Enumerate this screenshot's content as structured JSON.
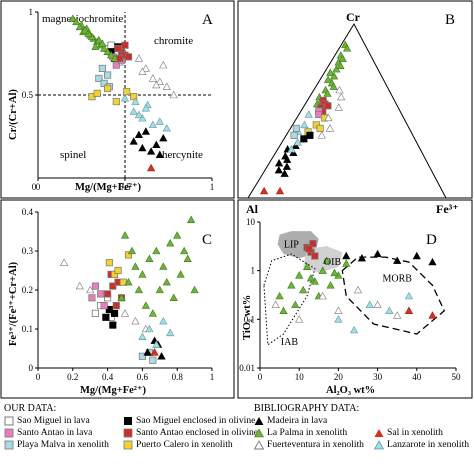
{
  "colors": {
    "sao_miguel_lava": "#ffffff",
    "sao_miguel_olivine": "#000000",
    "santo_antao_lava": "#e77fbf",
    "santo_antao_olivine": "#c9302c",
    "playa_malva": "#a9dbe2",
    "puerto_calero": "#f2d230",
    "madeira": "#000000",
    "la_palma": "#6fb33a",
    "sal": "#d9301e",
    "fuerteventura": "#ffffff",
    "lanzarote": "#a9dbe2"
  },
  "chart_data": [
    {
      "type": "scatter",
      "panel_label": "A",
      "xlabel": "Mg/(Mg+Fe²⁺)",
      "ylabel": "Cr/(Cr+Al)",
      "xlim": [
        0,
        1
      ],
      "ylim": [
        0,
        1
      ],
      "x_ticks": [
        "0",
        "0.5",
        "1"
      ],
      "y_ticks": [
        "0.5",
        "1"
      ],
      "region_labels": [
        "magnesiochromite",
        "chromite",
        "spinel",
        "hercynite"
      ],
      "divider_lines": {
        "x": 0.5,
        "y": 0.5
      },
      "series": [
        {
          "name": "Sao Miguel in lava",
          "marker": "square-open",
          "x": [
            0.4,
            0.44,
            0.47,
            0.42,
            0.45
          ],
          "y": [
            0.78,
            0.74,
            0.7,
            0.8,
            0.76
          ]
        },
        {
          "name": "Sao Miguel enclosed in olivine",
          "marker": "square",
          "x": [
            0.42,
            0.46,
            0.44,
            0.48
          ],
          "y": [
            0.76,
            0.79,
            0.72,
            0.74
          ]
        },
        {
          "name": "Santo Antao in lava",
          "marker": "square",
          "x": [
            0.45,
            0.48,
            0.43
          ],
          "y": [
            0.68,
            0.71,
            0.73
          ]
        },
        {
          "name": "Santo Antao enclosed in olivine",
          "marker": "square",
          "x": [
            0.48,
            0.5,
            0.46,
            0.52,
            0.47,
            0.5
          ],
          "y": [
            0.76,
            0.74,
            0.78,
            0.73,
            0.72,
            0.8
          ]
        },
        {
          "name": "Playa Malva in xenolith",
          "marker": "square",
          "x": [
            0.35,
            0.38,
            0.41,
            0.4,
            0.37
          ],
          "y": [
            0.6,
            0.57,
            0.55,
            0.62,
            0.66
          ]
        },
        {
          "name": "Puerto Calero in xenolith",
          "marker": "square",
          "x": [
            0.31,
            0.34,
            0.45,
            0.51,
            0.55,
            0.4
          ],
          "y": [
            0.49,
            0.51,
            0.46,
            0.52,
            0.49,
            0.54
          ]
        },
        {
          "name": "Madeira in lava",
          "marker": "triangle",
          "x": [
            0.55,
            0.6,
            0.65,
            0.68,
            0.7,
            0.58,
            0.62,
            0.72
          ],
          "y": [
            0.22,
            0.18,
            0.16,
            0.2,
            0.14,
            0.26,
            0.28,
            0.24
          ]
        },
        {
          "name": "La Palma in xenolith",
          "marker": "triangle",
          "x": [
            0.2,
            0.22,
            0.25,
            0.28,
            0.3,
            0.32,
            0.34,
            0.36,
            0.38,
            0.4,
            0.26,
            0.31,
            0.35,
            0.29,
            0.33,
            0.24,
            0.37,
            0.27,
            0.42,
            0.44
          ],
          "y": [
            0.96,
            0.94,
            0.92,
            0.9,
            0.86,
            0.84,
            0.82,
            0.8,
            0.78,
            0.76,
            0.88,
            0.85,
            0.83,
            0.87,
            0.79,
            0.91,
            0.81,
            0.89,
            0.74,
            0.72
          ]
        },
        {
          "name": "Sal in xenolith",
          "marker": "triangle",
          "x": [
            0.65
          ],
          "y": [
            0.06
          ]
        },
        {
          "name": "Fuerteventura in xenolith",
          "marker": "triangle-open",
          "x": [
            0.58,
            0.62,
            0.66,
            0.7,
            0.74,
            0.78,
            0.6,
            0.68,
            0.72
          ],
          "y": [
            0.72,
            0.66,
            0.6,
            0.58,
            0.55,
            0.5,
            0.64,
            0.56,
            0.68
          ]
        },
        {
          "name": "Lanzarote in xenolith",
          "marker": "triangle-open",
          "x": [
            0.5,
            0.55,
            0.6,
            0.63,
            0.66,
            0.7,
            0.74,
            0.58,
            0.62,
            0.56
          ],
          "y": [
            0.48,
            0.4,
            0.36,
            0.44,
            0.32,
            0.34,
            0.3,
            0.38,
            0.42,
            0.46
          ]
        }
      ]
    },
    {
      "type": "scatter",
      "panel_label": "B",
      "subtype": "ternary",
      "vertex_labels": {
        "top": "Cr",
        "left": "Al",
        "right": "Fe³⁺"
      }
    },
    {
      "type": "scatter",
      "panel_label": "C",
      "xlabel": "Mg/(Mg+Fe²⁺)",
      "ylabel": "Fe³⁺/(Fe³⁺+Cr+Al)",
      "xlim": [
        0,
        1
      ],
      "ylim": [
        0,
        0.4
      ],
      "x_ticks": [
        "0",
        "0.2",
        "0.4",
        "0.6",
        "0.8",
        "1"
      ],
      "y_ticks": [
        "0",
        "0.1",
        "0.2",
        "0.3",
        "0.4"
      ],
      "series": [
        {
          "name": "Sao Miguel in lava",
          "x": [
            0.33,
            0.36,
            0.4,
            0.42
          ],
          "y": [
            0.14,
            0.16,
            0.18,
            0.13
          ]
        },
        {
          "name": "Sao Miguel enclosed in olivine",
          "x": [
            0.39,
            0.41,
            0.43,
            0.44
          ],
          "y": [
            0.13,
            0.15,
            0.11,
            0.14
          ]
        },
        {
          "name": "Santo Antao in lava",
          "x": [
            0.31,
            0.33,
            0.36,
            0.38
          ],
          "y": [
            0.18,
            0.21,
            0.19,
            0.16
          ]
        },
        {
          "name": "Santo Antao enclosed in olivine",
          "x": [
            0.4,
            0.43,
            0.46,
            0.48,
            0.42,
            0.45
          ],
          "y": [
            0.19,
            0.21,
            0.22,
            0.18,
            0.24,
            0.16
          ]
        },
        {
          "name": "Playa Malva in xenolith",
          "x": [
            0.6,
            0.64,
            0.66
          ],
          "y": [
            0.03,
            0.04,
            0.02
          ]
        },
        {
          "name": "Puerto Calero in xenolith",
          "x": [
            0.41,
            0.44,
            0.49,
            0.52,
            0.46
          ],
          "y": [
            0.27,
            0.24,
            0.22,
            0.29,
            0.25
          ]
        },
        {
          "name": "Madeira in lava",
          "x": [
            0.63,
            0.67,
            0.71,
            0.69
          ],
          "y": [
            0.04,
            0.07,
            0.03,
            0.06
          ]
        },
        {
          "name": "La Palma in xenolith",
          "x": [
            0.48,
            0.52,
            0.56,
            0.6,
            0.64,
            0.68,
            0.72,
            0.76,
            0.8,
            0.84,
            0.88,
            0.58,
            0.62,
            0.66,
            0.7,
            0.74,
            0.78,
            0.54,
            0.5,
            0.82,
            0.86,
            0.9
          ],
          "y": [
            0.18,
            0.22,
            0.26,
            0.24,
            0.28,
            0.3,
            0.26,
            0.32,
            0.34,
            0.3,
            0.38,
            0.2,
            0.16,
            0.14,
            0.2,
            0.22,
            0.18,
            0.3,
            0.34,
            0.24,
            0.28,
            0.2
          ]
        },
        {
          "name": "Sal in xenolith",
          "x": [
            0.67
          ],
          "y": [
            0.04
          ]
        },
        {
          "name": "Fuerteventura in xenolith",
          "x": [
            0.15,
            0.24,
            0.3,
            0.5,
            0.56,
            0.62
          ],
          "y": [
            0.27,
            0.21,
            0.2,
            0.14,
            0.12,
            0.1
          ]
        },
        {
          "name": "Lanzarote in xenolith",
          "x": [
            0.6,
            0.64,
            0.68,
            0.72,
            0.76
          ],
          "y": [
            0.08,
            0.1,
            0.06,
            0.12,
            0.09
          ]
        }
      ]
    },
    {
      "type": "scatter",
      "panel_label": "D",
      "xlabel": "Al₂O₃ wt%",
      "ylabel": "TiO₂ wt%",
      "xlim": [
        0,
        50
      ],
      "ylim": [
        0.01,
        10
      ],
      "y_scale": "log",
      "x_ticks": [
        "0",
        "10",
        "20",
        "30",
        "40",
        "50"
      ],
      "y_ticks": [
        "0.01",
        "0.1",
        "1",
        "10"
      ],
      "region_labels": [
        "LIP",
        "OIB",
        "MORB",
        "IAB"
      ],
      "series": [
        {
          "name": "Santo Antao enclosed in olivine",
          "x": [
            12,
            13,
            14,
            13.5,
            12.5
          ],
          "y": [
            3.0,
            2.4,
            2.0,
            3.6,
            2.8
          ]
        },
        {
          "name": "Madeira in lava",
          "x": [
            22,
            26,
            30,
            35,
            40,
            44
          ],
          "y": [
            2.0,
            1.8,
            2.2,
            1.6,
            2.0,
            1.5
          ]
        },
        {
          "name": "La Palma in xenolith",
          "x": [
            5,
            8,
            10,
            12,
            14,
            16,
            18,
            20,
            22,
            9,
            11,
            15,
            17,
            19,
            6,
            13
          ],
          "y": [
            0.3,
            0.5,
            0.8,
            1.2,
            0.6,
            1.0,
            0.5,
            0.8,
            1.4,
            0.2,
            0.4,
            0.3,
            1.6,
            0.9,
            0.15,
            0.7
          ]
        },
        {
          "name": "Sal in xenolith",
          "x": [
            38,
            44
          ],
          "y": [
            0.15,
            0.12
          ]
        },
        {
          "name": "Fuerteventura in xenolith",
          "x": [
            4,
            10,
            16,
            20,
            25,
            30,
            35
          ],
          "y": [
            0.2,
            0.1,
            0.3,
            0.15,
            0.4,
            0.2,
            0.12
          ]
        },
        {
          "name": "Lanzarote in xenolith",
          "x": [
            20,
            24,
            28,
            33,
            38
          ],
          "y": [
            0.1,
            0.06,
            0.2,
            0.15,
            0.3
          ]
        }
      ]
    }
  ],
  "legend": {
    "our_header": "OUR DATA:",
    "biblio_header": "BIBLIOGRAPHY DATA:",
    "items": [
      {
        "label": "Sao Miguel in lava",
        "icon": "square-open-icon"
      },
      {
        "label": "Sao Miguel enclosed in olivine",
        "icon": "square-black-icon"
      },
      {
        "label": "Santo Antao in lava",
        "icon": "square-pink-icon"
      },
      {
        "label": "Santo Antao enclosed in olivine",
        "icon": "square-red-icon"
      },
      {
        "label": "Playa Malva in xenolith",
        "icon": "square-lightblue-icon"
      },
      {
        "label": "Puerto Calero in xenolith",
        "icon": "square-yellow-icon"
      },
      {
        "label": "Madeira in lava",
        "icon": "triangle-black-icon"
      },
      {
        "label": "La Palma in xenolith",
        "icon": "triangle-green-icon"
      },
      {
        "label": "Sal in xenolith",
        "icon": "triangle-red-icon"
      },
      {
        "label": "Fuerteventura in xenolith",
        "icon": "triangle-open-icon"
      },
      {
        "label": "Lanzarote in xenolith",
        "icon": "triangle-lightblue-icon"
      }
    ]
  }
}
